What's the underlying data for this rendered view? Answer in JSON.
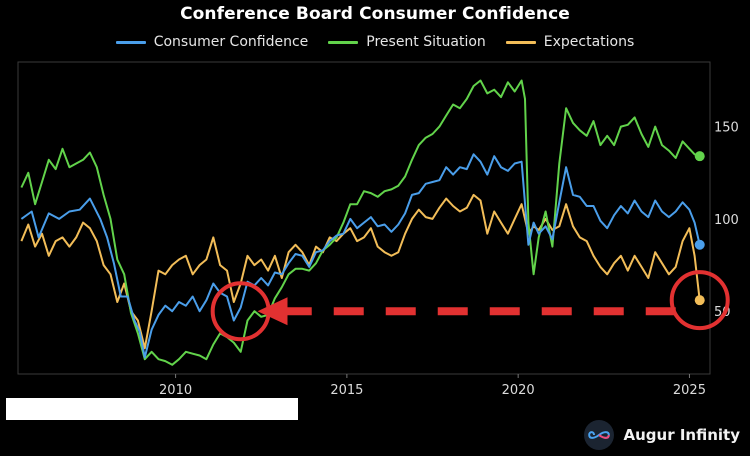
{
  "chart_data": {
    "type": "line",
    "title": "Conference Board Consumer Confidence",
    "xlabel": "",
    "ylabel": "",
    "xlim": [
      2005.4,
      2025.6
    ],
    "ylim": [
      16,
      185
    ],
    "x_ticks": [
      2010,
      2015,
      2020,
      2025
    ],
    "y_ticks": [
      50,
      100,
      150
    ],
    "series": [
      {
        "name": "Consumer Confidence",
        "color": "#4a9eea",
        "points": [
          [
            2005.5,
            100
          ],
          [
            2005.8,
            104
          ],
          [
            2006.0,
            90
          ],
          [
            2006.3,
            103
          ],
          [
            2006.6,
            100
          ],
          [
            2006.9,
            104
          ],
          [
            2007.2,
            105
          ],
          [
            2007.5,
            111
          ],
          [
            2007.8,
            100
          ],
          [
            2008.0,
            90
          ],
          [
            2008.2,
            76
          ],
          [
            2008.4,
            58
          ],
          [
            2008.6,
            58
          ],
          [
            2008.8,
            45
          ],
          [
            2008.95,
            39
          ],
          [
            2009.1,
            25
          ],
          [
            2009.3,
            40
          ],
          [
            2009.5,
            48
          ],
          [
            2009.7,
            53
          ],
          [
            2009.9,
            50
          ],
          [
            2010.1,
            55
          ],
          [
            2010.3,
            53
          ],
          [
            2010.5,
            58
          ],
          [
            2010.7,
            50
          ],
          [
            2010.9,
            56
          ],
          [
            2011.1,
            65
          ],
          [
            2011.3,
            60
          ],
          [
            2011.5,
            58
          ],
          [
            2011.7,
            45
          ],
          [
            2011.9,
            52
          ],
          [
            2012.1,
            66
          ],
          [
            2012.3,
            64
          ],
          [
            2012.5,
            68
          ],
          [
            2012.7,
            64
          ],
          [
            2012.9,
            71
          ],
          [
            2013.1,
            70
          ],
          [
            2013.3,
            76
          ],
          [
            2013.5,
            81
          ],
          [
            2013.7,
            80
          ],
          [
            2013.9,
            74
          ],
          [
            2014.1,
            82
          ],
          [
            2014.3,
            83
          ],
          [
            2014.5,
            88
          ],
          [
            2014.7,
            91
          ],
          [
            2014.9,
            92
          ],
          [
            2015.1,
            100
          ],
          [
            2015.3,
            95
          ],
          [
            2015.5,
            98
          ],
          [
            2015.7,
            101
          ],
          [
            2015.9,
            96
          ],
          [
            2016.1,
            97
          ],
          [
            2016.3,
            93
          ],
          [
            2016.5,
            97
          ],
          [
            2016.7,
            103
          ],
          [
            2016.9,
            113
          ],
          [
            2017.1,
            114
          ],
          [
            2017.3,
            119
          ],
          [
            2017.5,
            120
          ],
          [
            2017.7,
            121
          ],
          [
            2017.9,
            128
          ],
          [
            2018.1,
            124
          ],
          [
            2018.3,
            128
          ],
          [
            2018.5,
            127
          ],
          [
            2018.7,
            135
          ],
          [
            2018.9,
            131
          ],
          [
            2019.1,
            124
          ],
          [
            2019.3,
            134
          ],
          [
            2019.5,
            128
          ],
          [
            2019.7,
            126
          ],
          [
            2019.9,
            130
          ],
          [
            2020.1,
            131
          ],
          [
            2020.3,
            86
          ],
          [
            2020.45,
            98
          ],
          [
            2020.6,
            92
          ],
          [
            2020.8,
            96
          ],
          [
            2021.0,
            89
          ],
          [
            2021.2,
            109
          ],
          [
            2021.4,
            128
          ],
          [
            2021.6,
            113
          ],
          [
            2021.8,
            112
          ],
          [
            2022.0,
            107
          ],
          [
            2022.2,
            107
          ],
          [
            2022.4,
            99
          ],
          [
            2022.6,
            95
          ],
          [
            2022.8,
            102
          ],
          [
            2023.0,
            107
          ],
          [
            2023.2,
            103
          ],
          [
            2023.4,
            110
          ],
          [
            2023.6,
            104
          ],
          [
            2023.8,
            101
          ],
          [
            2024.0,
            110
          ],
          [
            2024.2,
            104
          ],
          [
            2024.4,
            101
          ],
          [
            2024.6,
            104
          ],
          [
            2024.8,
            109
          ],
          [
            2025.0,
            105
          ],
          [
            2025.15,
            98
          ],
          [
            2025.3,
            86
          ]
        ]
      },
      {
        "name": "Present Situation",
        "color": "#62d34b",
        "points": [
          [
            2005.5,
            117
          ],
          [
            2005.7,
            125
          ],
          [
            2005.9,
            108
          ],
          [
            2006.1,
            120
          ],
          [
            2006.3,
            132
          ],
          [
            2006.5,
            127
          ],
          [
            2006.7,
            138
          ],
          [
            2006.9,
            128
          ],
          [
            2007.1,
            130
          ],
          [
            2007.3,
            132
          ],
          [
            2007.5,
            136
          ],
          [
            2007.7,
            128
          ],
          [
            2007.9,
            113
          ],
          [
            2008.1,
            100
          ],
          [
            2008.3,
            78
          ],
          [
            2008.5,
            70
          ],
          [
            2008.7,
            49
          ],
          [
            2008.9,
            38
          ],
          [
            2009.1,
            24
          ],
          [
            2009.3,
            28
          ],
          [
            2009.5,
            24
          ],
          [
            2009.7,
            23
          ],
          [
            2009.9,
            21
          ],
          [
            2010.1,
            24
          ],
          [
            2010.3,
            28
          ],
          [
            2010.5,
            27
          ],
          [
            2010.7,
            26
          ],
          [
            2010.9,
            24
          ],
          [
            2011.1,
            32
          ],
          [
            2011.3,
            38
          ],
          [
            2011.5,
            36
          ],
          [
            2011.7,
            33
          ],
          [
            2011.9,
            28
          ],
          [
            2012.1,
            45
          ],
          [
            2012.3,
            50
          ],
          [
            2012.5,
            47
          ],
          [
            2012.7,
            48
          ],
          [
            2012.9,
            57
          ],
          [
            2013.1,
            63
          ],
          [
            2013.3,
            70
          ],
          [
            2013.5,
            73
          ],
          [
            2013.7,
            73
          ],
          [
            2013.9,
            72
          ],
          [
            2014.1,
            76
          ],
          [
            2014.3,
            83
          ],
          [
            2014.5,
            86
          ],
          [
            2014.7,
            90
          ],
          [
            2014.9,
            98
          ],
          [
            2015.1,
            108
          ],
          [
            2015.3,
            108
          ],
          [
            2015.5,
            115
          ],
          [
            2015.7,
            114
          ],
          [
            2015.9,
            112
          ],
          [
            2016.1,
            115
          ],
          [
            2016.3,
            116
          ],
          [
            2016.5,
            118
          ],
          [
            2016.7,
            123
          ],
          [
            2016.9,
            132
          ],
          [
            2017.1,
            140
          ],
          [
            2017.3,
            144
          ],
          [
            2017.5,
            146
          ],
          [
            2017.7,
            150
          ],
          [
            2017.9,
            156
          ],
          [
            2018.1,
            162
          ],
          [
            2018.3,
            160
          ],
          [
            2018.5,
            165
          ],
          [
            2018.7,
            172
          ],
          [
            2018.9,
            175
          ],
          [
            2019.1,
            168
          ],
          [
            2019.3,
            170
          ],
          [
            2019.5,
            166
          ],
          [
            2019.7,
            174
          ],
          [
            2019.9,
            169
          ],
          [
            2020.1,
            175
          ],
          [
            2020.2,
            165
          ],
          [
            2020.3,
            98
          ],
          [
            2020.45,
            70
          ],
          [
            2020.6,
            90
          ],
          [
            2020.8,
            104
          ],
          [
            2021.0,
            85
          ],
          [
            2021.2,
            130
          ],
          [
            2021.4,
            160
          ],
          [
            2021.6,
            152
          ],
          [
            2021.8,
            148
          ],
          [
            2022.0,
            145
          ],
          [
            2022.2,
            153
          ],
          [
            2022.4,
            140
          ],
          [
            2022.6,
            145
          ],
          [
            2022.8,
            140
          ],
          [
            2023.0,
            150
          ],
          [
            2023.2,
            151
          ],
          [
            2023.4,
            155
          ],
          [
            2023.6,
            146
          ],
          [
            2023.8,
            139
          ],
          [
            2024.0,
            150
          ],
          [
            2024.2,
            140
          ],
          [
            2024.4,
            137
          ],
          [
            2024.6,
            133
          ],
          [
            2024.8,
            142
          ],
          [
            2025.0,
            138
          ],
          [
            2025.15,
            135
          ],
          [
            2025.3,
            134
          ]
        ]
      },
      {
        "name": "Expectations",
        "color": "#f2bd58",
        "points": [
          [
            2005.5,
            88
          ],
          [
            2005.7,
            97
          ],
          [
            2005.9,
            85
          ],
          [
            2006.1,
            92
          ],
          [
            2006.3,
            80
          ],
          [
            2006.5,
            88
          ],
          [
            2006.7,
            90
          ],
          [
            2006.9,
            85
          ],
          [
            2007.1,
            90
          ],
          [
            2007.3,
            98
          ],
          [
            2007.5,
            95
          ],
          [
            2007.7,
            88
          ],
          [
            2007.9,
            75
          ],
          [
            2008.1,
            70
          ],
          [
            2008.3,
            55
          ],
          [
            2008.5,
            65
          ],
          [
            2008.7,
            50
          ],
          [
            2008.9,
            45
          ],
          [
            2009.1,
            30
          ],
          [
            2009.3,
            50
          ],
          [
            2009.5,
            72
          ],
          [
            2009.7,
            70
          ],
          [
            2009.9,
            75
          ],
          [
            2010.1,
            78
          ],
          [
            2010.3,
            80
          ],
          [
            2010.5,
            70
          ],
          [
            2010.7,
            75
          ],
          [
            2010.9,
            78
          ],
          [
            2011.1,
            90
          ],
          [
            2011.3,
            75
          ],
          [
            2011.5,
            72
          ],
          [
            2011.7,
            55
          ],
          [
            2011.9,
            65
          ],
          [
            2012.1,
            80
          ],
          [
            2012.3,
            75
          ],
          [
            2012.5,
            78
          ],
          [
            2012.7,
            72
          ],
          [
            2012.9,
            80
          ],
          [
            2013.1,
            68
          ],
          [
            2013.3,
            82
          ],
          [
            2013.5,
            86
          ],
          [
            2013.7,
            82
          ],
          [
            2013.9,
            75
          ],
          [
            2014.1,
            85
          ],
          [
            2014.3,
            82
          ],
          [
            2014.5,
            90
          ],
          [
            2014.7,
            88
          ],
          [
            2014.9,
            92
          ],
          [
            2015.1,
            95
          ],
          [
            2015.3,
            88
          ],
          [
            2015.5,
            90
          ],
          [
            2015.7,
            95
          ],
          [
            2015.9,
            85
          ],
          [
            2016.1,
            82
          ],
          [
            2016.3,
            80
          ],
          [
            2016.5,
            82
          ],
          [
            2016.7,
            92
          ],
          [
            2016.9,
            100
          ],
          [
            2017.1,
            105
          ],
          [
            2017.3,
            101
          ],
          [
            2017.5,
            100
          ],
          [
            2017.7,
            106
          ],
          [
            2017.9,
            111
          ],
          [
            2018.1,
            107
          ],
          [
            2018.3,
            104
          ],
          [
            2018.5,
            106
          ],
          [
            2018.7,
            113
          ],
          [
            2018.9,
            110
          ],
          [
            2019.1,
            92
          ],
          [
            2019.3,
            104
          ],
          [
            2019.5,
            98
          ],
          [
            2019.7,
            92
          ],
          [
            2019.9,
            100
          ],
          [
            2020.1,
            108
          ],
          [
            2020.3,
            92
          ],
          [
            2020.45,
            96
          ],
          [
            2020.6,
            94
          ],
          [
            2020.8,
            100
          ],
          [
            2021.0,
            94
          ],
          [
            2021.2,
            96
          ],
          [
            2021.4,
            108
          ],
          [
            2021.6,
            96
          ],
          [
            2021.8,
            90
          ],
          [
            2022.0,
            88
          ],
          [
            2022.2,
            80
          ],
          [
            2022.4,
            74
          ],
          [
            2022.6,
            70
          ],
          [
            2022.8,
            76
          ],
          [
            2023.0,
            80
          ],
          [
            2023.2,
            72
          ],
          [
            2023.4,
            80
          ],
          [
            2023.6,
            74
          ],
          [
            2023.8,
            68
          ],
          [
            2024.0,
            82
          ],
          [
            2024.2,
            76
          ],
          [
            2024.4,
            70
          ],
          [
            2024.6,
            74
          ],
          [
            2024.8,
            88
          ],
          [
            2025.0,
            95
          ],
          [
            2025.15,
            80
          ],
          [
            2025.3,
            56
          ]
        ]
      }
    ],
    "annotations": [
      {
        "type": "circle",
        "x": 2011.9,
        "y": 50,
        "color": "#e23131"
      },
      {
        "type": "circle",
        "x": 2025.3,
        "y": 56,
        "color": "#e23131"
      },
      {
        "type": "dashed-arrow",
        "from_x": 2024.6,
        "to_x": 2012.8,
        "y": 50,
        "color": "#e23131"
      }
    ]
  },
  "brand": {
    "name": "Augur Infinity",
    "logo_icon": "infinity-icon"
  }
}
